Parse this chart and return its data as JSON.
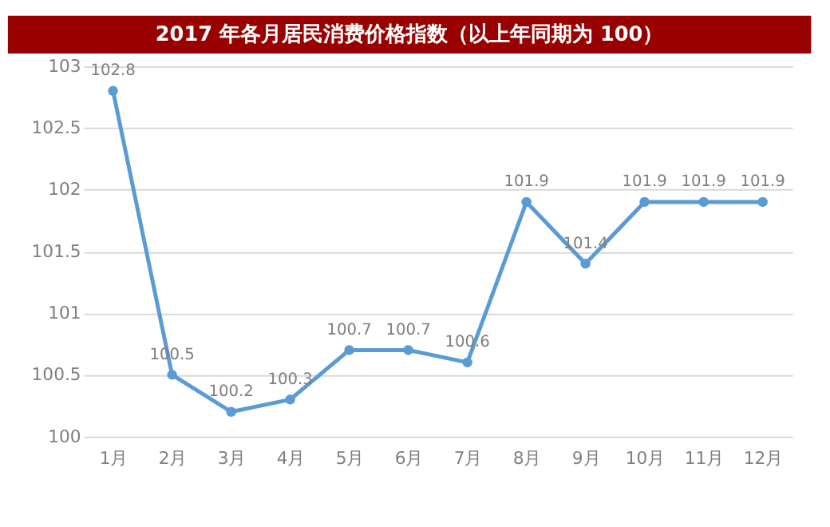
{
  "chart_data": {
    "type": "line",
    "title": "2017 年各月居民消费价格指数（以上年同期为 100）",
    "categories": [
      "1月",
      "2月",
      "3月",
      "4月",
      "5月",
      "6月",
      "7月",
      "8月",
      "9月",
      "10月",
      "11月",
      "12月"
    ],
    "series": [
      {
        "color": "#5b9bd5",
        "values": [
          102.8,
          100.5,
          100.2,
          100.3,
          100.7,
          100.7,
          100.6,
          101.9,
          101.4,
          101.9,
          101.9,
          101.9
        ]
      }
    ],
    "ylim": [
      100,
      103
    ],
    "yticks": [
      100,
      100.5,
      101,
      101.5,
      102,
      102.5,
      103
    ],
    "grid": "y",
    "marker": "circle",
    "line_style": "solid",
    "data_labels": true
  }
}
